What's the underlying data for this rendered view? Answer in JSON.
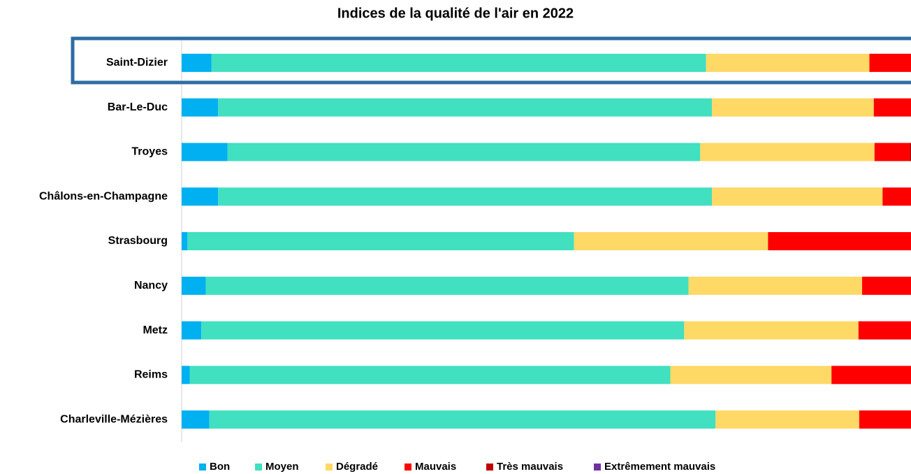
{
  "chart_data": {
    "type": "stacked-bar-horizontal",
    "title": "Indices de la qualité de l'air en 2022",
    "categories": [
      "Saint-Dizier",
      "Bar-Le-Duc",
      "Troyes",
      "Châlons-en-Champagne",
      "Strasbourg",
      "Nancy",
      "Metz",
      "Reims",
      "Charleville-Mézières"
    ],
    "xlim": [
      0,
      100
    ],
    "series": [
      {
        "name": "Bon",
        "color": "#00b0f0",
        "values": [
          4.1,
          5.0,
          6.3,
          5.0,
          0.8,
          3.3,
          2.7,
          1.1,
          3.8
        ]
      },
      {
        "name": "Moyen",
        "color": "#40e0c0",
        "values": [
          67.8,
          67.7,
          64.8,
          67.7,
          53.0,
          66.2,
          66.2,
          65.9,
          69.4
        ]
      },
      {
        "name": "Dégradé",
        "color": "#ffd966",
        "values": [
          22.4,
          22.2,
          23.9,
          23.4,
          26.6,
          23.8,
          23.9,
          22.1,
          19.7
        ]
      },
      {
        "name": "Mauvais",
        "color": "#ff0000",
        "values": [
          5.7,
          5.1,
          4.8,
          3.9,
          19.6,
          6.7,
          7.2,
          10.9,
          7.1
        ]
      },
      {
        "name": "Très mauvais",
        "color": "#c00000",
        "values": [
          0,
          0,
          0.2,
          0,
          0,
          0,
          0,
          0,
          0
        ]
      },
      {
        "name": "Extrêmement mauvais",
        "color": "#7030a0",
        "values": [
          0,
          0,
          0,
          0,
          0,
          0,
          0,
          0,
          0
        ]
      }
    ]
  }
}
